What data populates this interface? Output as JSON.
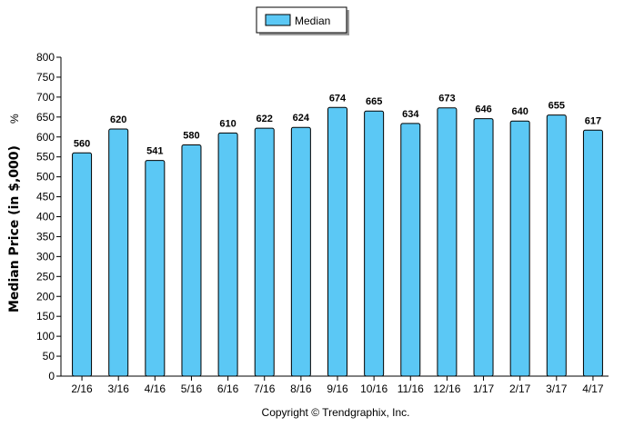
{
  "chart_data": {
    "type": "bar",
    "categories": [
      "2/16",
      "3/16",
      "4/16",
      "5/16",
      "6/16",
      "7/16",
      "8/16",
      "9/16",
      "10/16",
      "11/16",
      "12/16",
      "1/17",
      "2/17",
      "3/17",
      "4/17"
    ],
    "series": [
      {
        "name": "Median",
        "values": [
          560,
          620,
          541,
          580,
          610,
          622,
          624,
          674,
          665,
          634,
          673,
          646,
          640,
          655,
          617
        ]
      }
    ],
    "ylabel": "Median Price (in $,000)",
    "ylabel_suffix": "%",
    "ylim": [
      0,
      800
    ],
    "ytick_step": 50,
    "grid": false,
    "legend_position": "top-center",
    "data_labels": true,
    "bar_color": "#5bc8f5"
  },
  "footer": {
    "copyright": "Copyright © Trendgraphix, Inc."
  }
}
